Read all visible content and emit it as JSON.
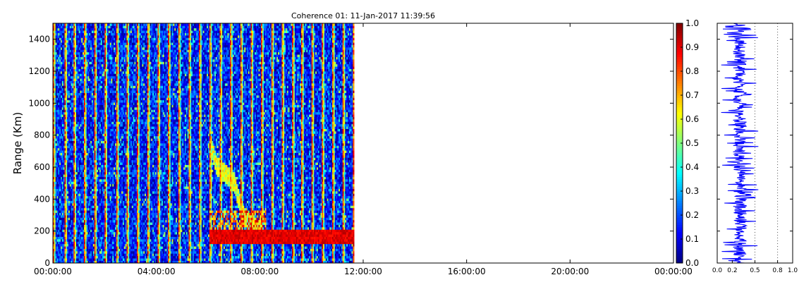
{
  "chart_data": [
    {
      "type": "heatmap",
      "title": "Coherence 01: 11-Jan-2017 11:39:56",
      "xlabel": "",
      "ylabel": "Range (Km)",
      "x_tick_labels": [
        "00:00:00",
        "04:00:00",
        "08:00:00",
        "12:00:00",
        "16:00:00",
        "20:00:00",
        "00:00:00"
      ],
      "x_range_hours": [
        0,
        24
      ],
      "data_extent_hours": [
        0,
        11.65
      ],
      "y_ticks": [
        0,
        200,
        400,
        600,
        800,
        1000,
        1200,
        1400
      ],
      "ylim": [
        0,
        1500
      ],
      "colormap": "jet",
      "colorbar": {
        "ticks": [
          "0.0",
          "0.1",
          "0.2",
          "0.3",
          "0.4",
          "0.5",
          "0.6",
          "0.7",
          "0.8",
          "0.9",
          "1.0"
        ],
        "range": [
          0,
          1
        ]
      },
      "features": {
        "vertical_stripes_period_hours": 0.4,
        "background_coherence": 0.15,
        "low_range_band_km": [
          120,
          200
        ],
        "low_range_band_hours": [
          6.0,
          11.65
        ],
        "low_range_band_value": 0.95,
        "oblique_trace": [
          [
            6.0,
            800
          ],
          [
            6.3,
            600
          ],
          [
            7.0,
            500
          ],
          [
            7.3,
            300
          ],
          [
            7.8,
            220
          ],
          [
            8.0,
            180
          ]
        ]
      }
    },
    {
      "type": "line",
      "title": "",
      "x_tick_labels": [
        "0.0",
        "0.2",
        "0.5",
        "0.8",
        "1.0"
      ],
      "xlim": [
        0,
        1
      ],
      "ylim": [
        0,
        1500
      ],
      "grid": "vertical dotted at 0.5 and 0.8",
      "color": "#0000ff",
      "profile_mean": 0.3,
      "profile_spread": [
        0.05,
        0.55
      ]
    }
  ]
}
